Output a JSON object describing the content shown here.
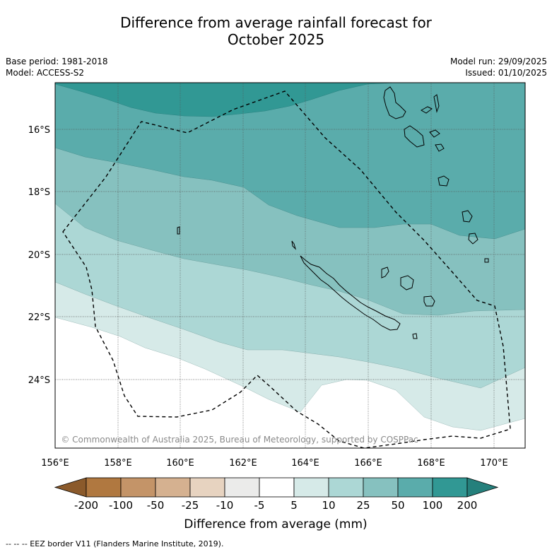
{
  "title": {
    "line1": "Difference from average rainfall forecast for",
    "line2": "October 2025"
  },
  "meta": {
    "base_period": "Base period: 1981-2018",
    "model": "Model: ACCESS-S2",
    "model_run": "Model run: 29/09/2025",
    "issued": "Issued: 01/10/2025"
  },
  "map": {
    "lat_labels": [
      "16°S",
      "18°S",
      "20°S",
      "22°S",
      "24°S"
    ],
    "lon_labels": [
      "156°E",
      "158°E",
      "160°E",
      "162°E",
      "164°E",
      "166°E",
      "168°E",
      "170°E"
    ],
    "copyright": "© Commonwealth of Australia 2025, Bureau of Meteorology, supported by COSPPac"
  },
  "colorbar": {
    "title": "Difference from average (mm)",
    "ticks": [
      "-200",
      "-100",
      "-50",
      "-25",
      "-10",
      "-5",
      "5",
      "10",
      "25",
      "50",
      "100",
      "200"
    ],
    "colors": [
      "#8b5a2b",
      "#b07840",
      "#c49468",
      "#d5b190",
      "#e7d3c0",
      "#ebebea",
      "#ffffff",
      "#d6eae8",
      "#acd7d5",
      "#86c1bf",
      "#5aacab",
      "#319894",
      "#25807c"
    ]
  },
  "footnote": "--  --  -- EEZ border V11 (Flanders Marine Institute, 2019)."
}
